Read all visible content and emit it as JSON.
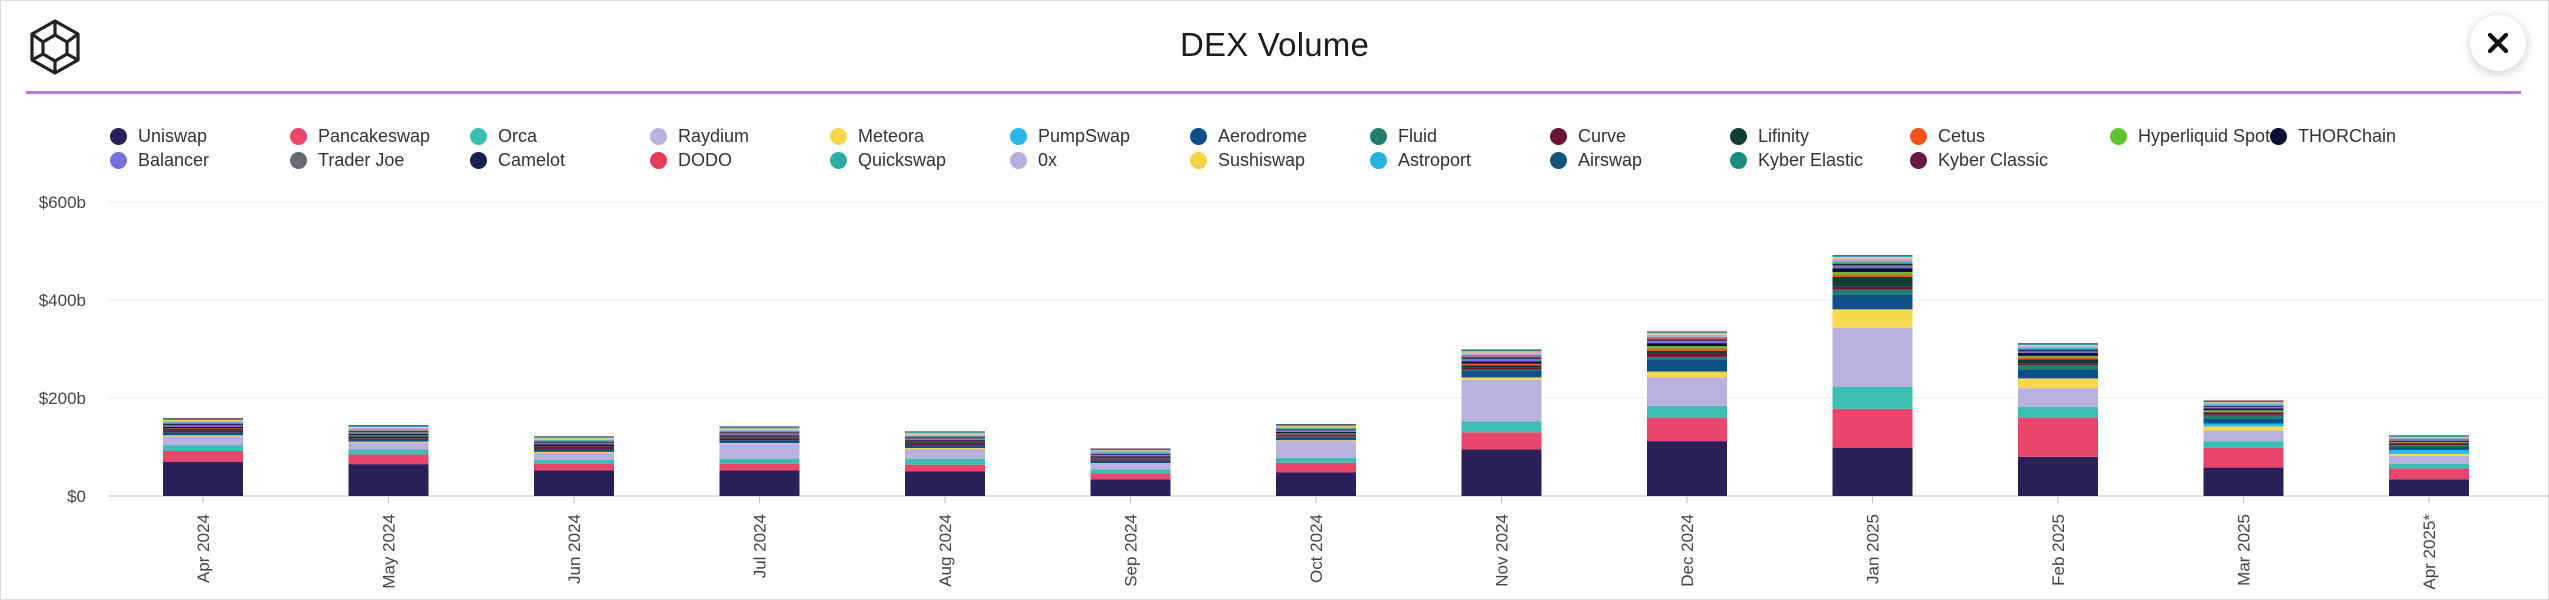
{
  "header": {
    "title": "DEX Volume",
    "logo_icon": "cube-logo-icon",
    "close_icon": "close-icon",
    "accent": "#b37ce0"
  },
  "chart_data": {
    "type": "bar",
    "stacked": true,
    "title": "DEX Volume",
    "xlabel": "",
    "ylabel": "",
    "ylim": [
      0,
      600
    ],
    "yticks": [
      0,
      200,
      400,
      600
    ],
    "ytick_labels": [
      "$0",
      "$200b",
      "$400b",
      "$600b"
    ],
    "grid": true,
    "legend_position": "top",
    "categories": [
      "Apr 2024",
      "May 2024",
      "Jun 2024",
      "Jul 2024",
      "Aug 2024",
      "Sep 2024",
      "Oct 2024",
      "Nov 2024",
      "Dec 2024",
      "Jan 2025",
      "Feb 2025",
      "Mar 2025",
      "Apr 2025*"
    ],
    "series": [
      {
        "name": "Uniswap",
        "color": "#2b1f57",
        "values": [
          70,
          65,
          52,
          52,
          50,
          34,
          48,
          95,
          112,
          98,
          80,
          58,
          34
        ]
      },
      {
        "name": "Pancakeswap",
        "color": "#e8466b",
        "values": [
          22,
          20,
          14,
          14,
          14,
          12,
          20,
          35,
          48,
          80,
          80,
          40,
          22
        ]
      },
      {
        "name": "Orca",
        "color": "#3dbeb2",
        "values": [
          12,
          10,
          8,
          10,
          12,
          8,
          10,
          22,
          24,
          45,
          22,
          14,
          10
        ]
      },
      {
        "name": "Raydium",
        "color": "#b9b1e0",
        "values": [
          18,
          14,
          14,
          30,
          20,
          12,
          34,
          85,
          58,
          120,
          38,
          22,
          16
        ]
      },
      {
        "name": "Meteora",
        "color": "#f5d84b",
        "values": [
          2,
          2,
          2,
          2,
          2,
          1,
          2,
          5,
          12,
          38,
          20,
          8,
          4
        ]
      },
      {
        "name": "PumpSwap",
        "color": "#2bb8e8",
        "values": [
          0,
          0,
          0,
          0,
          0,
          0,
          0,
          0,
          0,
          0,
          0,
          6,
          8
        ]
      },
      {
        "name": "Aerodrome",
        "color": "#0e4f88",
        "values": [
          6,
          6,
          6,
          6,
          6,
          5,
          6,
          14,
          25,
          30,
          18,
          10,
          6
        ]
      },
      {
        "name": "Fluid",
        "color": "#1f7f6a",
        "values": [
          0,
          0,
          0,
          0,
          0,
          0,
          1,
          2,
          5,
          10,
          9,
          6,
          4
        ]
      },
      {
        "name": "Curve",
        "color": "#6a1538",
        "values": [
          4,
          4,
          3,
          4,
          4,
          3,
          3,
          4,
          6,
          6,
          4,
          3,
          2
        ]
      },
      {
        "name": "Lifinity",
        "color": "#0f3d33",
        "values": [
          3,
          2,
          2,
          2,
          2,
          2,
          2,
          5,
          6,
          20,
          8,
          4,
          2
        ]
      },
      {
        "name": "Cetus",
        "color": "#f0531f",
        "values": [
          1,
          1,
          1,
          1,
          1,
          1,
          2,
          3,
          5,
          5,
          4,
          2,
          1
        ]
      },
      {
        "name": "Hyperliquid Spot",
        "color": "#64c22c",
        "values": [
          0,
          0,
          0,
          0,
          0,
          0,
          0,
          0,
          5,
          5,
          3,
          2,
          1
        ]
      },
      {
        "name": "THORChain",
        "color": "#0b1135",
        "values": [
          3,
          3,
          3,
          3,
          3,
          3,
          3,
          5,
          6,
          8,
          6,
          4,
          2
        ]
      },
      {
        "name": "Balancer",
        "color": "#7a6ee0",
        "values": [
          2,
          2,
          2,
          2,
          2,
          2,
          2,
          3,
          3,
          3,
          2,
          2,
          1
        ]
      },
      {
        "name": "Trader Joe",
        "color": "#666a70",
        "values": [
          2,
          2,
          2,
          2,
          2,
          1,
          1,
          2,
          2,
          3,
          2,
          1,
          1
        ]
      },
      {
        "name": "Camelot",
        "color": "#1b1f4e",
        "values": [
          2,
          2,
          2,
          2,
          2,
          2,
          2,
          3,
          3,
          3,
          2,
          2,
          1
        ]
      },
      {
        "name": "DODO",
        "color": "#e63a5d",
        "values": [
          1,
          1,
          1,
          1,
          1,
          1,
          1,
          2,
          2,
          2,
          2,
          1,
          1
        ]
      },
      {
        "name": "Quickswap",
        "color": "#2aaea2",
        "values": [
          2,
          2,
          2,
          2,
          2,
          2,
          2,
          3,
          3,
          3,
          2,
          2,
          1
        ]
      },
      {
        "name": "0x",
        "color": "#b7addf",
        "values": [
          3,
          3,
          2,
          3,
          3,
          3,
          3,
          5,
          5,
          6,
          4,
          3,
          2
        ]
      },
      {
        "name": "Sushiswap",
        "color": "#f2d544",
        "values": [
          2,
          2,
          2,
          2,
          2,
          1,
          1,
          2,
          2,
          3,
          2,
          1,
          1
        ]
      },
      {
        "name": "Astroport",
        "color": "#27b2e0",
        "values": [
          1,
          1,
          1,
          1,
          1,
          1,
          1,
          1,
          1,
          1,
          1,
          1,
          1
        ]
      },
      {
        "name": "Airswap",
        "color": "#11557a",
        "values": [
          1,
          1,
          1,
          1,
          1,
          1,
          1,
          1,
          1,
          1,
          1,
          1,
          1
        ]
      },
      {
        "name": "Kyber Elastic",
        "color": "#1c8c7a",
        "values": [
          1,
          1,
          1,
          1,
          1,
          1,
          1,
          1,
          1,
          1,
          1,
          1,
          1
        ]
      },
      {
        "name": "Kyber Classic",
        "color": "#6a1a40",
        "values": [
          1,
          1,
          1,
          1,
          1,
          1,
          1,
          1,
          1,
          1,
          1,
          1,
          1
        ]
      }
    ]
  }
}
